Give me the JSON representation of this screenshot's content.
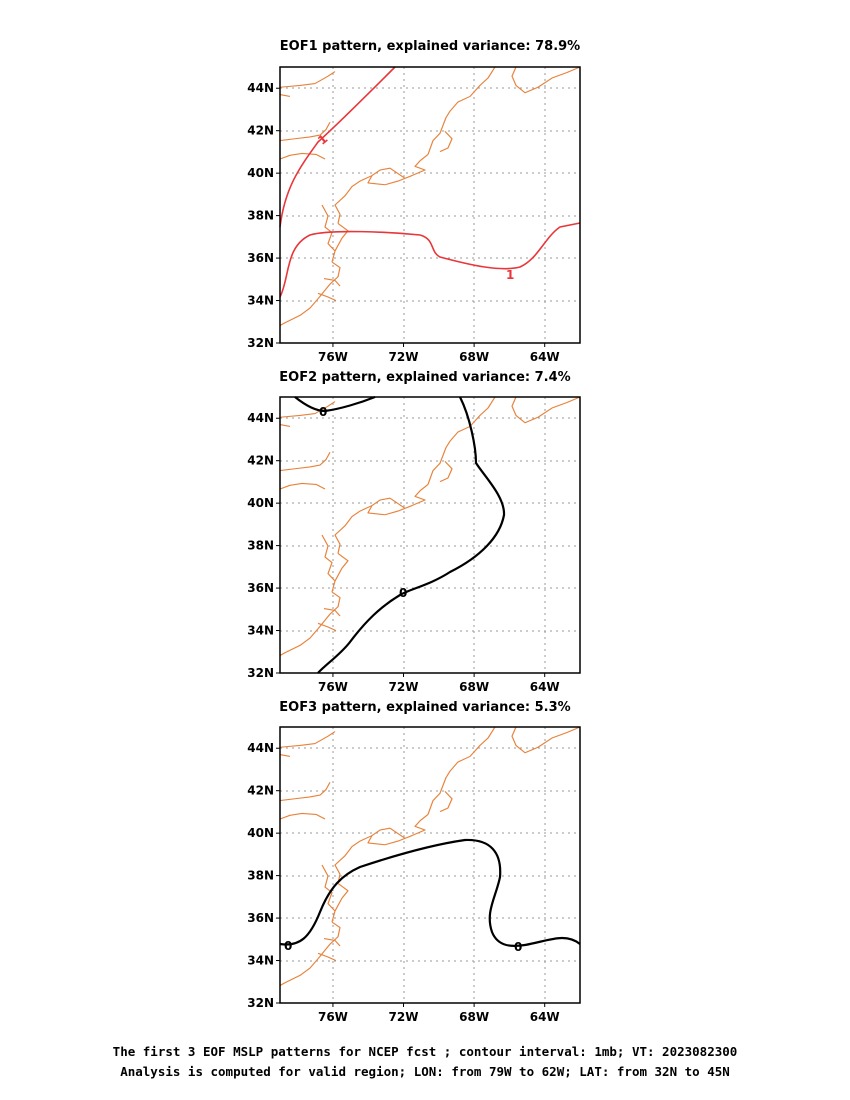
{
  "panels": [
    {
      "title": "EOF1 pattern, explained variance: 78.9%",
      "contour": {
        "label": "1",
        "color": "#e8363a",
        "type": "positive"
      }
    },
    {
      "title": "EOF2 pattern, explained variance: 7.4%",
      "contour": {
        "label": "0",
        "color": "#000000",
        "type": "zero"
      }
    },
    {
      "title": "EOF3 pattern, explained variance: 5.3%",
      "contour": {
        "label": "0",
        "color": "#000000",
        "type": "zero"
      }
    }
  ],
  "axes": {
    "lat_ticks": [
      "32N",
      "34N",
      "36N",
      "38N",
      "40N",
      "42N",
      "44N"
    ],
    "lon_ticks": [
      "76W",
      "72W",
      "68W",
      "64W"
    ],
    "lat_range": [
      32,
      45
    ],
    "lon_range": [
      -79,
      -62
    ]
  },
  "colors": {
    "coastline": "#e8823a",
    "grid": "#9a9a9a"
  },
  "caption": {
    "line1": "The first 3 EOF MSLP patterns for NCEP fcst ; contour interval: 1mb; VT: 2023082300",
    "line2": "Analysis is computed for valid region; LON: from 79W to 62W; LAT: from 32N to 45N"
  }
}
